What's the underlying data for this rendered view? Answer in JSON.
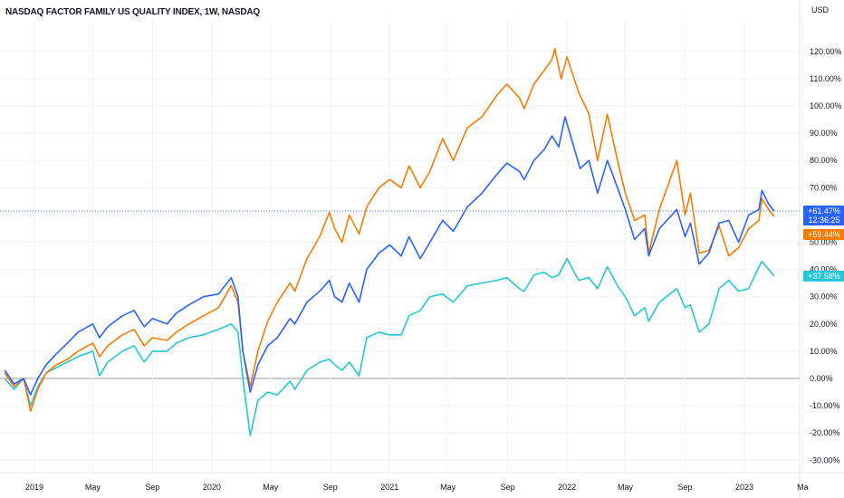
{
  "header": {
    "title": "NASDAQ FACTOR FAMILY US QUALITY INDEX, 1W, NASDAQ",
    "currency": "USD"
  },
  "colors": {
    "background": "#ffffff",
    "gridline": "#f0f3fa",
    "zero_line": "#9598a1",
    "axis_text": "#131722",
    "label_text": "#ffffff",
    "crosshair": "#2962ff"
  },
  "chart_data": {
    "type": "line",
    "title": "NASDAQ FACTOR FAMILY US QUALITY INDEX, 1W, NASDAQ",
    "ylabel": "USD",
    "y_unit": "%",
    "ylim": [
      -33,
      127
    ],
    "xlim": [
      "2018-11-01",
      "2023-03-15"
    ],
    "grid": true,
    "y_ticks": [
      120,
      110,
      100,
      90,
      80,
      70,
      60,
      50,
      40,
      30,
      20,
      10,
      0,
      -10,
      -20,
      -30
    ],
    "y_tick_labels": [
      "120.00%",
      "110.00%",
      "100.00%",
      "90.00%",
      "80.00%",
      "70.00%",
      "60.00%",
      "50.00%",
      "40.00%",
      "30.00%",
      "20.00%",
      "10.00%",
      "0.00%",
      "-10.00%",
      "-20.00%",
      "-30.00%"
    ],
    "x_ticks": [
      {
        "date": "2019-01-01",
        "label": "2019"
      },
      {
        "date": "2019-05-01",
        "label": "May"
      },
      {
        "date": "2019-09-01",
        "label": "Sep"
      },
      {
        "date": "2020-01-01",
        "label": "2020"
      },
      {
        "date": "2020-05-01",
        "label": "May"
      },
      {
        "date": "2020-09-01",
        "label": "Sep"
      },
      {
        "date": "2021-01-01",
        "label": "2021"
      },
      {
        "date": "2021-05-01",
        "label": "May"
      },
      {
        "date": "2021-09-01",
        "label": "Sep"
      },
      {
        "date": "2022-01-01",
        "label": "2022"
      },
      {
        "date": "2022-05-01",
        "label": "May"
      },
      {
        "date": "2022-09-01",
        "label": "Sep"
      },
      {
        "date": "2023-01-01",
        "label": "2023"
      },
      {
        "date": "2023-05-01",
        "label": "Ma"
      }
    ],
    "series": [
      {
        "color": "#2962ff",
        "last_label": "+61.47%",
        "sub_label": "12:36:25",
        "points": [
          [
            "2018-11-01",
            3
          ],
          [
            "2018-11-20",
            -2
          ],
          [
            "2018-12-10",
            0
          ],
          [
            "2018-12-24",
            -6
          ],
          [
            "2019-01-08",
            0
          ],
          [
            "2019-01-25",
            5
          ],
          [
            "2019-02-15",
            9
          ],
          [
            "2019-03-10",
            13
          ],
          [
            "2019-04-01",
            17
          ],
          [
            "2019-05-01",
            20
          ],
          [
            "2019-05-15",
            15
          ],
          [
            "2019-06-01",
            19
          ],
          [
            "2019-07-01",
            23
          ],
          [
            "2019-07-25",
            25
          ],
          [
            "2019-08-15",
            19
          ],
          [
            "2019-09-01",
            22
          ],
          [
            "2019-10-01",
            20
          ],
          [
            "2019-10-20",
            24
          ],
          [
            "2019-11-15",
            27
          ],
          [
            "2019-12-15",
            30
          ],
          [
            "2020-01-15",
            31
          ],
          [
            "2020-02-10",
            37
          ],
          [
            "2020-02-24",
            30
          ],
          [
            "2020-03-05",
            10
          ],
          [
            "2020-03-20",
            -5
          ],
          [
            "2020-04-05",
            5
          ],
          [
            "2020-04-25",
            12
          ],
          [
            "2020-05-15",
            15
          ],
          [
            "2020-06-10",
            22
          ],
          [
            "2020-06-20",
            20
          ],
          [
            "2020-07-15",
            28
          ],
          [
            "2020-08-10",
            32
          ],
          [
            "2020-08-30",
            36
          ],
          [
            "2020-09-10",
            30
          ],
          [
            "2020-09-25",
            28
          ],
          [
            "2020-10-10",
            35
          ],
          [
            "2020-10-30",
            28
          ],
          [
            "2020-11-15",
            40
          ],
          [
            "2020-12-10",
            46
          ],
          [
            "2021-01-01",
            49
          ],
          [
            "2021-01-25",
            45
          ],
          [
            "2021-02-10",
            52
          ],
          [
            "2021-03-05",
            44
          ],
          [
            "2021-03-25",
            50
          ],
          [
            "2021-04-20",
            58
          ],
          [
            "2021-05-12",
            54
          ],
          [
            "2021-06-10",
            63
          ],
          [
            "2021-07-10",
            68
          ],
          [
            "2021-08-10",
            75
          ],
          [
            "2021-08-30",
            79
          ],
          [
            "2021-09-25",
            76
          ],
          [
            "2021-10-05",
            73
          ],
          [
            "2021-10-25",
            80
          ],
          [
            "2021-11-15",
            84
          ],
          [
            "2021-12-01",
            89
          ],
          [
            "2021-12-15",
            85
          ],
          [
            "2021-12-28",
            96
          ],
          [
            "2022-01-10",
            88
          ],
          [
            "2022-01-28",
            77
          ],
          [
            "2022-02-15",
            80
          ],
          [
            "2022-03-05",
            68
          ],
          [
            "2022-03-25",
            80
          ],
          [
            "2022-04-15",
            70
          ],
          [
            "2022-05-01",
            62
          ],
          [
            "2022-05-20",
            51
          ],
          [
            "2022-06-10",
            55
          ],
          [
            "2022-06-18",
            45
          ],
          [
            "2022-07-10",
            55
          ],
          [
            "2022-08-15",
            62
          ],
          [
            "2022-09-01",
            52
          ],
          [
            "2022-09-12",
            57
          ],
          [
            "2022-09-30",
            42
          ],
          [
            "2022-10-20",
            46
          ],
          [
            "2022-11-10",
            57
          ],
          [
            "2022-11-30",
            58
          ],
          [
            "2022-12-20",
            50
          ],
          [
            "2023-01-10",
            60
          ],
          [
            "2023-01-31",
            62
          ],
          [
            "2023-02-06",
            69
          ],
          [
            "2023-02-20",
            64
          ],
          [
            "2023-03-03",
            61.47
          ]
        ]
      },
      {
        "color": "#f57c00",
        "last_label": "+59.44%",
        "points": [
          [
            "2018-11-01",
            2
          ],
          [
            "2018-11-20",
            -3
          ],
          [
            "2018-12-10",
            0
          ],
          [
            "2018-12-24",
            -12
          ],
          [
            "2019-01-08",
            -4
          ],
          [
            "2019-01-25",
            2
          ],
          [
            "2019-02-15",
            5
          ],
          [
            "2019-03-10",
            7
          ],
          [
            "2019-04-01",
            10
          ],
          [
            "2019-05-01",
            13
          ],
          [
            "2019-05-15",
            8
          ],
          [
            "2019-06-01",
            12
          ],
          [
            "2019-07-01",
            16
          ],
          [
            "2019-07-25",
            18
          ],
          [
            "2019-08-15",
            12
          ],
          [
            "2019-09-01",
            15
          ],
          [
            "2019-10-01",
            14
          ],
          [
            "2019-10-20",
            17
          ],
          [
            "2019-11-15",
            20
          ],
          [
            "2019-12-15",
            23
          ],
          [
            "2020-01-15",
            26
          ],
          [
            "2020-02-10",
            34
          ],
          [
            "2020-02-24",
            28
          ],
          [
            "2020-03-05",
            10
          ],
          [
            "2020-03-20",
            -3
          ],
          [
            "2020-04-05",
            10
          ],
          [
            "2020-04-25",
            21
          ],
          [
            "2020-05-15",
            28
          ],
          [
            "2020-06-10",
            35
          ],
          [
            "2020-06-20",
            32
          ],
          [
            "2020-07-15",
            44
          ],
          [
            "2020-08-10",
            52
          ],
          [
            "2020-08-30",
            61
          ],
          [
            "2020-09-10",
            55
          ],
          [
            "2020-09-25",
            50
          ],
          [
            "2020-10-10",
            60
          ],
          [
            "2020-10-30",
            53
          ],
          [
            "2020-11-15",
            63
          ],
          [
            "2020-12-10",
            70
          ],
          [
            "2021-01-01",
            73
          ],
          [
            "2021-01-25",
            70
          ],
          [
            "2021-02-10",
            78
          ],
          [
            "2021-03-05",
            70
          ],
          [
            "2021-03-25",
            76
          ],
          [
            "2021-04-20",
            88
          ],
          [
            "2021-05-12",
            80
          ],
          [
            "2021-06-10",
            92
          ],
          [
            "2021-07-10",
            96
          ],
          [
            "2021-08-10",
            104
          ],
          [
            "2021-08-30",
            108
          ],
          [
            "2021-09-25",
            103
          ],
          [
            "2021-10-05",
            99
          ],
          [
            "2021-10-25",
            108
          ],
          [
            "2021-11-15",
            113
          ],
          [
            "2021-12-01",
            117
          ],
          [
            "2021-12-07",
            121
          ],
          [
            "2021-12-20",
            110
          ],
          [
            "2022-01-01",
            118
          ],
          [
            "2022-01-25",
            105
          ],
          [
            "2022-02-15",
            97
          ],
          [
            "2022-03-05",
            80
          ],
          [
            "2022-03-25",
            97
          ],
          [
            "2022-04-15",
            80
          ],
          [
            "2022-05-01",
            68
          ],
          [
            "2022-05-20",
            58
          ],
          [
            "2022-06-10",
            60
          ],
          [
            "2022-06-18",
            46
          ],
          [
            "2022-07-10",
            62
          ],
          [
            "2022-08-15",
            80
          ],
          [
            "2022-09-01",
            60
          ],
          [
            "2022-09-12",
            68
          ],
          [
            "2022-09-30",
            46
          ],
          [
            "2022-10-20",
            47
          ],
          [
            "2022-11-10",
            56
          ],
          [
            "2022-11-30",
            45
          ],
          [
            "2022-12-20",
            48
          ],
          [
            "2023-01-10",
            55
          ],
          [
            "2023-01-31",
            58
          ],
          [
            "2023-02-06",
            66
          ],
          [
            "2023-02-20",
            62
          ],
          [
            "2023-03-03",
            59.44
          ]
        ]
      },
      {
        "color": "#26c6da",
        "last_label": "+37.58%",
        "points": [
          [
            "2018-11-01",
            0
          ],
          [
            "2018-11-20",
            -4
          ],
          [
            "2018-12-10",
            0
          ],
          [
            "2018-12-24",
            -10
          ],
          [
            "2019-01-08",
            -3
          ],
          [
            "2019-01-25",
            2
          ],
          [
            "2019-02-15",
            4
          ],
          [
            "2019-03-10",
            6
          ],
          [
            "2019-04-01",
            8
          ],
          [
            "2019-05-01",
            10
          ],
          [
            "2019-05-15",
            1
          ],
          [
            "2019-06-01",
            6
          ],
          [
            "2019-07-01",
            10
          ],
          [
            "2019-07-25",
            12
          ],
          [
            "2019-08-15",
            6
          ],
          [
            "2019-09-01",
            10
          ],
          [
            "2019-10-01",
            10
          ],
          [
            "2019-10-20",
            13
          ],
          [
            "2019-11-15",
            15
          ],
          [
            "2019-12-15",
            16
          ],
          [
            "2020-01-15",
            18
          ],
          [
            "2020-02-10",
            20
          ],
          [
            "2020-02-24",
            17
          ],
          [
            "2020-03-05",
            0
          ],
          [
            "2020-03-20",
            -21
          ],
          [
            "2020-04-05",
            -8
          ],
          [
            "2020-04-25",
            -5
          ],
          [
            "2020-05-15",
            -6
          ],
          [
            "2020-06-10",
            -1
          ],
          [
            "2020-06-20",
            -4
          ],
          [
            "2020-07-15",
            3
          ],
          [
            "2020-08-10",
            6
          ],
          [
            "2020-08-30",
            7
          ],
          [
            "2020-09-10",
            5
          ],
          [
            "2020-09-25",
            3
          ],
          [
            "2020-10-10",
            6
          ],
          [
            "2020-10-30",
            1
          ],
          [
            "2020-11-15",
            15
          ],
          [
            "2020-12-10",
            17
          ],
          [
            "2021-01-01",
            16
          ],
          [
            "2021-01-25",
            16
          ],
          [
            "2021-02-10",
            23
          ],
          [
            "2021-03-05",
            25
          ],
          [
            "2021-03-25",
            30
          ],
          [
            "2021-04-20",
            31
          ],
          [
            "2021-05-12",
            28
          ],
          [
            "2021-06-10",
            34
          ],
          [
            "2021-07-10",
            35
          ],
          [
            "2021-08-10",
            36
          ],
          [
            "2021-08-30",
            37
          ],
          [
            "2021-09-25",
            33
          ],
          [
            "2021-10-05",
            32
          ],
          [
            "2021-10-25",
            38
          ],
          [
            "2021-11-15",
            39
          ],
          [
            "2021-12-01",
            37
          ],
          [
            "2021-12-15",
            38
          ],
          [
            "2022-01-01",
            44
          ],
          [
            "2022-01-25",
            36
          ],
          [
            "2022-02-15",
            37
          ],
          [
            "2022-03-05",
            33
          ],
          [
            "2022-03-25",
            41
          ],
          [
            "2022-04-15",
            34
          ],
          [
            "2022-05-01",
            30
          ],
          [
            "2022-05-20",
            23
          ],
          [
            "2022-06-10",
            26
          ],
          [
            "2022-06-18",
            21
          ],
          [
            "2022-07-10",
            28
          ],
          [
            "2022-08-15",
            33
          ],
          [
            "2022-09-01",
            26
          ],
          [
            "2022-09-12",
            27
          ],
          [
            "2022-09-30",
            17
          ],
          [
            "2022-10-20",
            20
          ],
          [
            "2022-11-10",
            33
          ],
          [
            "2022-11-30",
            36
          ],
          [
            "2022-12-20",
            32
          ],
          [
            "2023-01-10",
            33
          ],
          [
            "2023-01-31",
            41
          ],
          [
            "2023-02-06",
            43
          ],
          [
            "2023-02-20",
            40
          ],
          [
            "2023-03-03",
            37.58
          ]
        ]
      }
    ]
  }
}
